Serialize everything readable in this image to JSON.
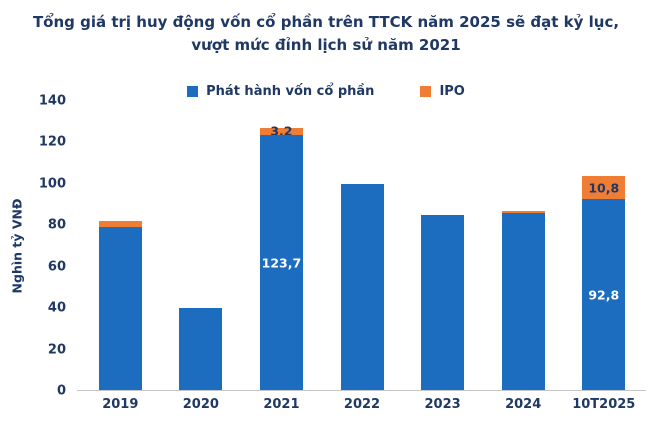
{
  "title": {
    "line1": "Tổng giá trị huy động vốn cổ phần trên TTCK năm 2025 sẽ đạt kỷ lục,",
    "line2": "vượt mức đỉnh lịch sử năm 2021"
  },
  "legend": [
    {
      "label": "Phát hành vốn cổ phần",
      "color": "#1c6cc0"
    },
    {
      "label": "IPO",
      "color": "#f07d34"
    }
  ],
  "colors": {
    "title": "#1f3864",
    "axis_text": "#1f3864",
    "bar_blue": "#1c6cc0",
    "bar_orange": "#f07d34",
    "label_on_blue": "#ffffff",
    "label_on_orange": "#1f3864",
    "axis_line": "#c6c6c6"
  },
  "chart_data": {
    "type": "bar",
    "stacked": true,
    "title": "Tổng giá trị huy động vốn cổ phần trên TTCK năm 2025 sẽ đạt kỷ lục, vượt mức đỉnh lịch sử năm 2021",
    "categories": [
      "2019",
      "2020",
      "2021",
      "2022",
      "2023",
      "2024",
      "10T2025"
    ],
    "series": [
      {
        "name": "Phát hành vốn cổ phần",
        "color": "#1c6cc0",
        "values": [
          79,
          40,
          123.7,
          100,
          85,
          86,
          92.8
        ],
        "labels": [
          "",
          "",
          "123,7",
          "",
          "",
          "",
          "92,8"
        ]
      },
      {
        "name": "IPO",
        "color": "#f07d34",
        "values": [
          3,
          0,
          3.2,
          0,
          0,
          1,
          10.8
        ],
        "labels": [
          "",
          "",
          "3,2",
          "",
          "",
          "",
          "10,8"
        ]
      }
    ],
    "xlabel": "",
    "ylabel": "Nghìn tỷ VNĐ",
    "ylim": [
      0,
      140
    ],
    "yticks": [
      0,
      20,
      40,
      60,
      80,
      100,
      120,
      140
    ],
    "grid": false,
    "legend_position": "top"
  }
}
